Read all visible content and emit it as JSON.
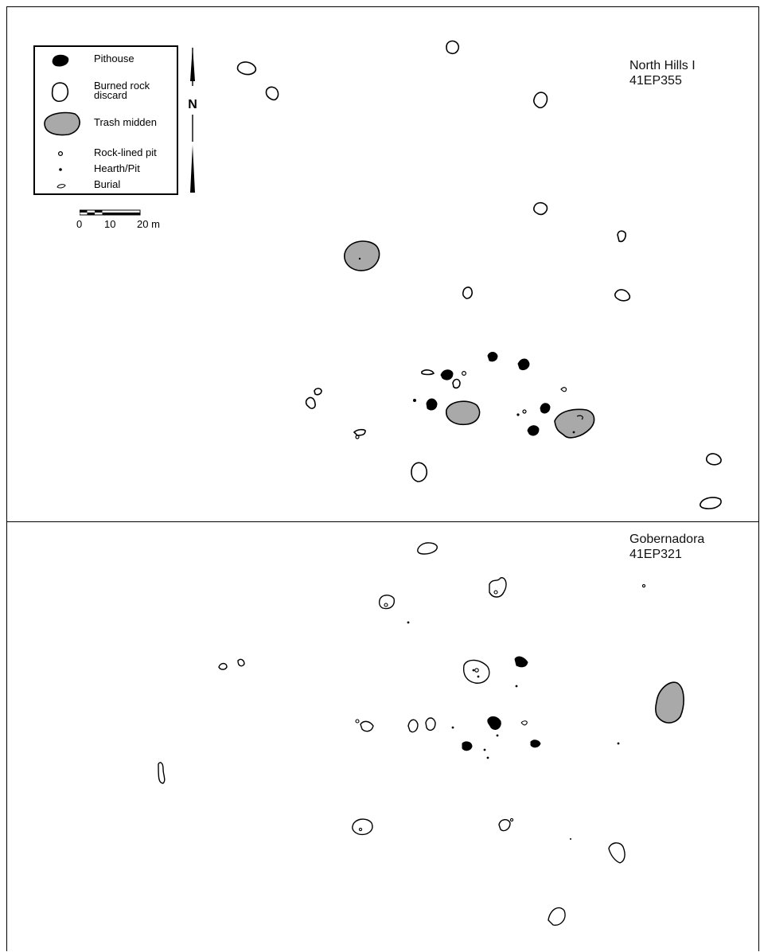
{
  "panels": {
    "north": {
      "site_name": "North Hills I",
      "site_number": "41EP355"
    },
    "gobernadora": {
      "site_name": "Gobernadora",
      "site_number": "41EP321"
    }
  },
  "legend": {
    "items": [
      {
        "key": "pithouse",
        "label": "Pithouse",
        "icon": "pithouse-icon"
      },
      {
        "key": "burned-rock",
        "label": "Burned rock",
        "label2": "discard",
        "icon": "burned-rock-icon"
      },
      {
        "key": "trash-midden",
        "label": "Trash midden",
        "icon": "trash-midden-icon"
      },
      {
        "key": "rock-lined-pit",
        "label": "Rock-lined pit",
        "icon": "rock-lined-pit-icon"
      },
      {
        "key": "hearth-pit",
        "label": "Hearth/Pit",
        "icon": "hearth-pit-icon"
      },
      {
        "key": "burial",
        "label": "Burial",
        "icon": "burial-icon"
      }
    ],
    "north_arrow": "N",
    "scale": {
      "labels": [
        "0",
        "10",
        "20 m"
      ]
    }
  },
  "colors": {
    "line": "#000000",
    "midden_fill": "#a9a9a9",
    "pithouse_fill": "#000000"
  }
}
